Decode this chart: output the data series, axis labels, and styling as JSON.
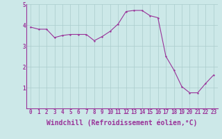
{
  "x": [
    0,
    1,
    2,
    3,
    4,
    5,
    6,
    7,
    8,
    9,
    10,
    11,
    12,
    13,
    14,
    15,
    16,
    17,
    18,
    19,
    20,
    21,
    22,
    23
  ],
  "y": [
    3.9,
    3.8,
    3.8,
    3.4,
    3.5,
    3.55,
    3.55,
    3.55,
    3.25,
    3.45,
    3.7,
    4.05,
    4.65,
    4.7,
    4.7,
    4.45,
    4.35,
    2.5,
    1.85,
    1.05,
    0.75,
    0.75,
    1.2,
    1.6
  ],
  "line_color": "#993399",
  "marker_color": "#993399",
  "bg_color": "#cce8e8",
  "grid_color": "#aacccc",
  "xlabel": "Windchill (Refroidissement éolien,°C)",
  "ylim": [
    0,
    5
  ],
  "xlim_min": -0.5,
  "xlim_max": 23.5,
  "yticks": [
    1,
    2,
    3,
    4,
    5
  ],
  "xticks": [
    0,
    1,
    2,
    3,
    4,
    5,
    6,
    7,
    8,
    9,
    10,
    11,
    12,
    13,
    14,
    15,
    16,
    17,
    18,
    19,
    20,
    21,
    22,
    23
  ],
  "tick_label_fontsize": 5.5,
  "xlabel_fontsize": 7,
  "line_width": 0.8,
  "marker_size": 2.0
}
